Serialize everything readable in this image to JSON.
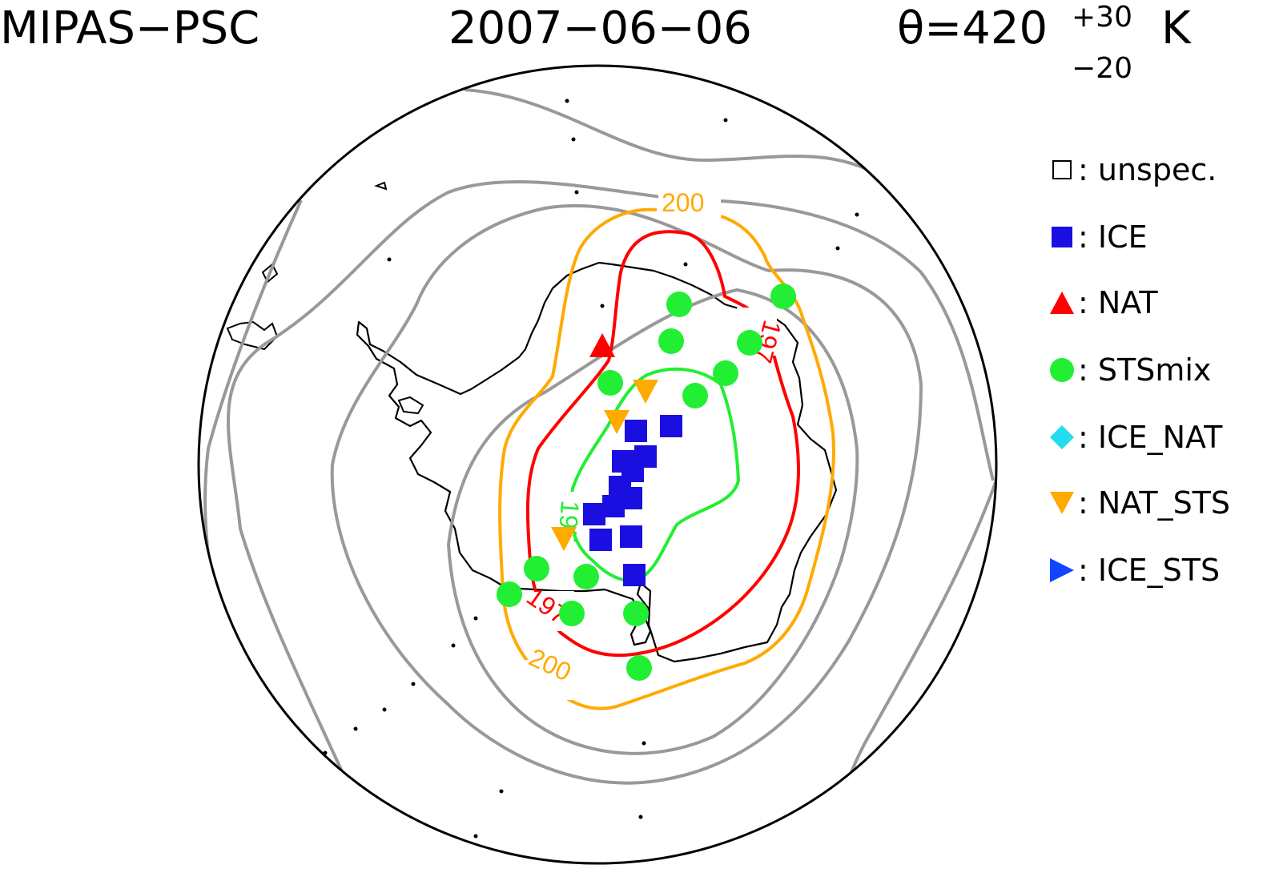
{
  "title": {
    "instrument": "MIPAS−PSC",
    "date": "2007−06−06",
    "theta_prefix": "θ=420",
    "theta_sup": "+30",
    "theta_sub": "−20",
    "theta_unit": "K"
  },
  "legend": [
    {
      "symbol": "open-square",
      "label": ": unspec.",
      "color": "#000000"
    },
    {
      "symbol": "filled-square",
      "label": ": ICE",
      "color": "#1a0ee0"
    },
    {
      "symbol": "triangle-up",
      "label": ": NAT",
      "color": "#ff0000"
    },
    {
      "symbol": "circle",
      "label": ": STSmix",
      "color": "#22ee33"
    },
    {
      "symbol": "diamond",
      "label": ": ICE_NAT",
      "color": "#22ddee"
    },
    {
      "symbol": "triangle-down",
      "label": ": NAT_STS",
      "color": "#ffaa00"
    },
    {
      "symbol": "triangle-right",
      "label": ": ICE_STS",
      "color": "#1144ff"
    }
  ],
  "contour_labels": {
    "orange": "200",
    "red": "197",
    "green": "195"
  },
  "colors": {
    "contour_gray": "#999999",
    "contour_orange": "#ffaa00",
    "contour_red": "#ff0000",
    "contour_green": "#22ee33",
    "ice": "#1a0ee0",
    "sts": "#22ee33",
    "nat_sts": "#ffaa00",
    "nat": "#ff0000"
  }
}
